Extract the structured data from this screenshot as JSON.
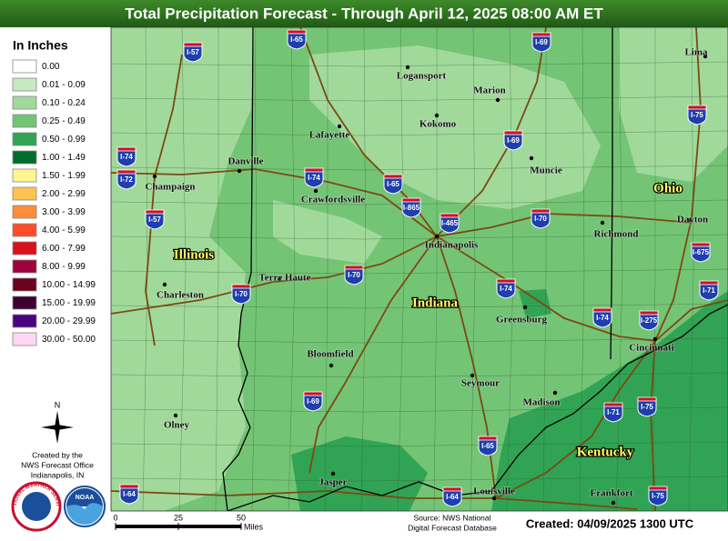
{
  "header": {
    "title": "Total Precipitation Forecast - Through April 12, 2025 08:00 AM ET"
  },
  "legend": {
    "title": "In Inches",
    "items": [
      {
        "label": "0.00",
        "color": "#ffffff"
      },
      {
        "label": "0.01 - 0.09",
        "color": "#c7e9c0"
      },
      {
        "label": "0.10 - 0.24",
        "color": "#a1d99b"
      },
      {
        "label": "0.25 - 0.49",
        "color": "#74c476"
      },
      {
        "label": "0.50 - 0.99",
        "color": "#31a354"
      },
      {
        "label": "1.00 - 1.49",
        "color": "#006d2c"
      },
      {
        "label": "1.50 - 1.99",
        "color": "#fff68f"
      },
      {
        "label": "2.00 - 2.99",
        "color": "#ffc34f"
      },
      {
        "label": "3.00 - 3.99",
        "color": "#ff8c3a"
      },
      {
        "label": "4.00 - 5.99",
        "color": "#ff4d2a"
      },
      {
        "label": "6.00 - 7.99",
        "color": "#d90f1a"
      },
      {
        "label": "8.00 - 9.99",
        "color": "#a0003c"
      },
      {
        "label": "10.00 - 14.99",
        "color": "#6b0020"
      },
      {
        "label": "15.00 - 19.99",
        "color": "#3d0030"
      },
      {
        "label": "20.00 - 29.99",
        "color": "#4b0082"
      },
      {
        "label": "30.00 - 50.00",
        "color": "#ffd7f5"
      }
    ]
  },
  "map": {
    "states": [
      "Illinois",
      "Indiana",
      "Ohio",
      "Kentucky"
    ],
    "cities": [
      "Logansport",
      "Lima",
      "Marion",
      "Kokomo",
      "Lafayette",
      "Muncie",
      "Danville",
      "Champaign",
      "Crawfordsville",
      "Dayton",
      "Indianapolis",
      "Richmond",
      "Terre Haute",
      "Charleston",
      "Greensburg",
      "Cincinnati",
      "Bloomfield",
      "Seymour",
      "Madison",
      "Olney",
      "Jasper",
      "Louisville",
      "Frankfort"
    ],
    "interstates": [
      "I-65",
      "I-57",
      "I-69",
      "I-75",
      "I-69",
      "I-74",
      "I-72",
      "I-74",
      "I-65",
      "I-865",
      "I-465",
      "I-70",
      "I-57",
      "I-675",
      "I-70",
      "I-70",
      "I-74",
      "I-71",
      "I-74",
      "I-275",
      "I-69",
      "I-75",
      "I-71",
      "I-65",
      "I-75",
      "I-64",
      "I-64"
    ]
  },
  "compass": "N",
  "credit": [
    "Created by the",
    "NWS Forecast Office",
    "Indianapolis, IN"
  ],
  "logos": [
    "NATIONAL WEATHER SERVICE",
    "NOAA"
  ],
  "scale": {
    "ticks": [
      0,
      25,
      50
    ],
    "unit": "Miles"
  },
  "source": [
    "Source: NWS National",
    "Digital Forecast Database"
  ],
  "created": "Created: 04/09/2025 1300 UTC"
}
